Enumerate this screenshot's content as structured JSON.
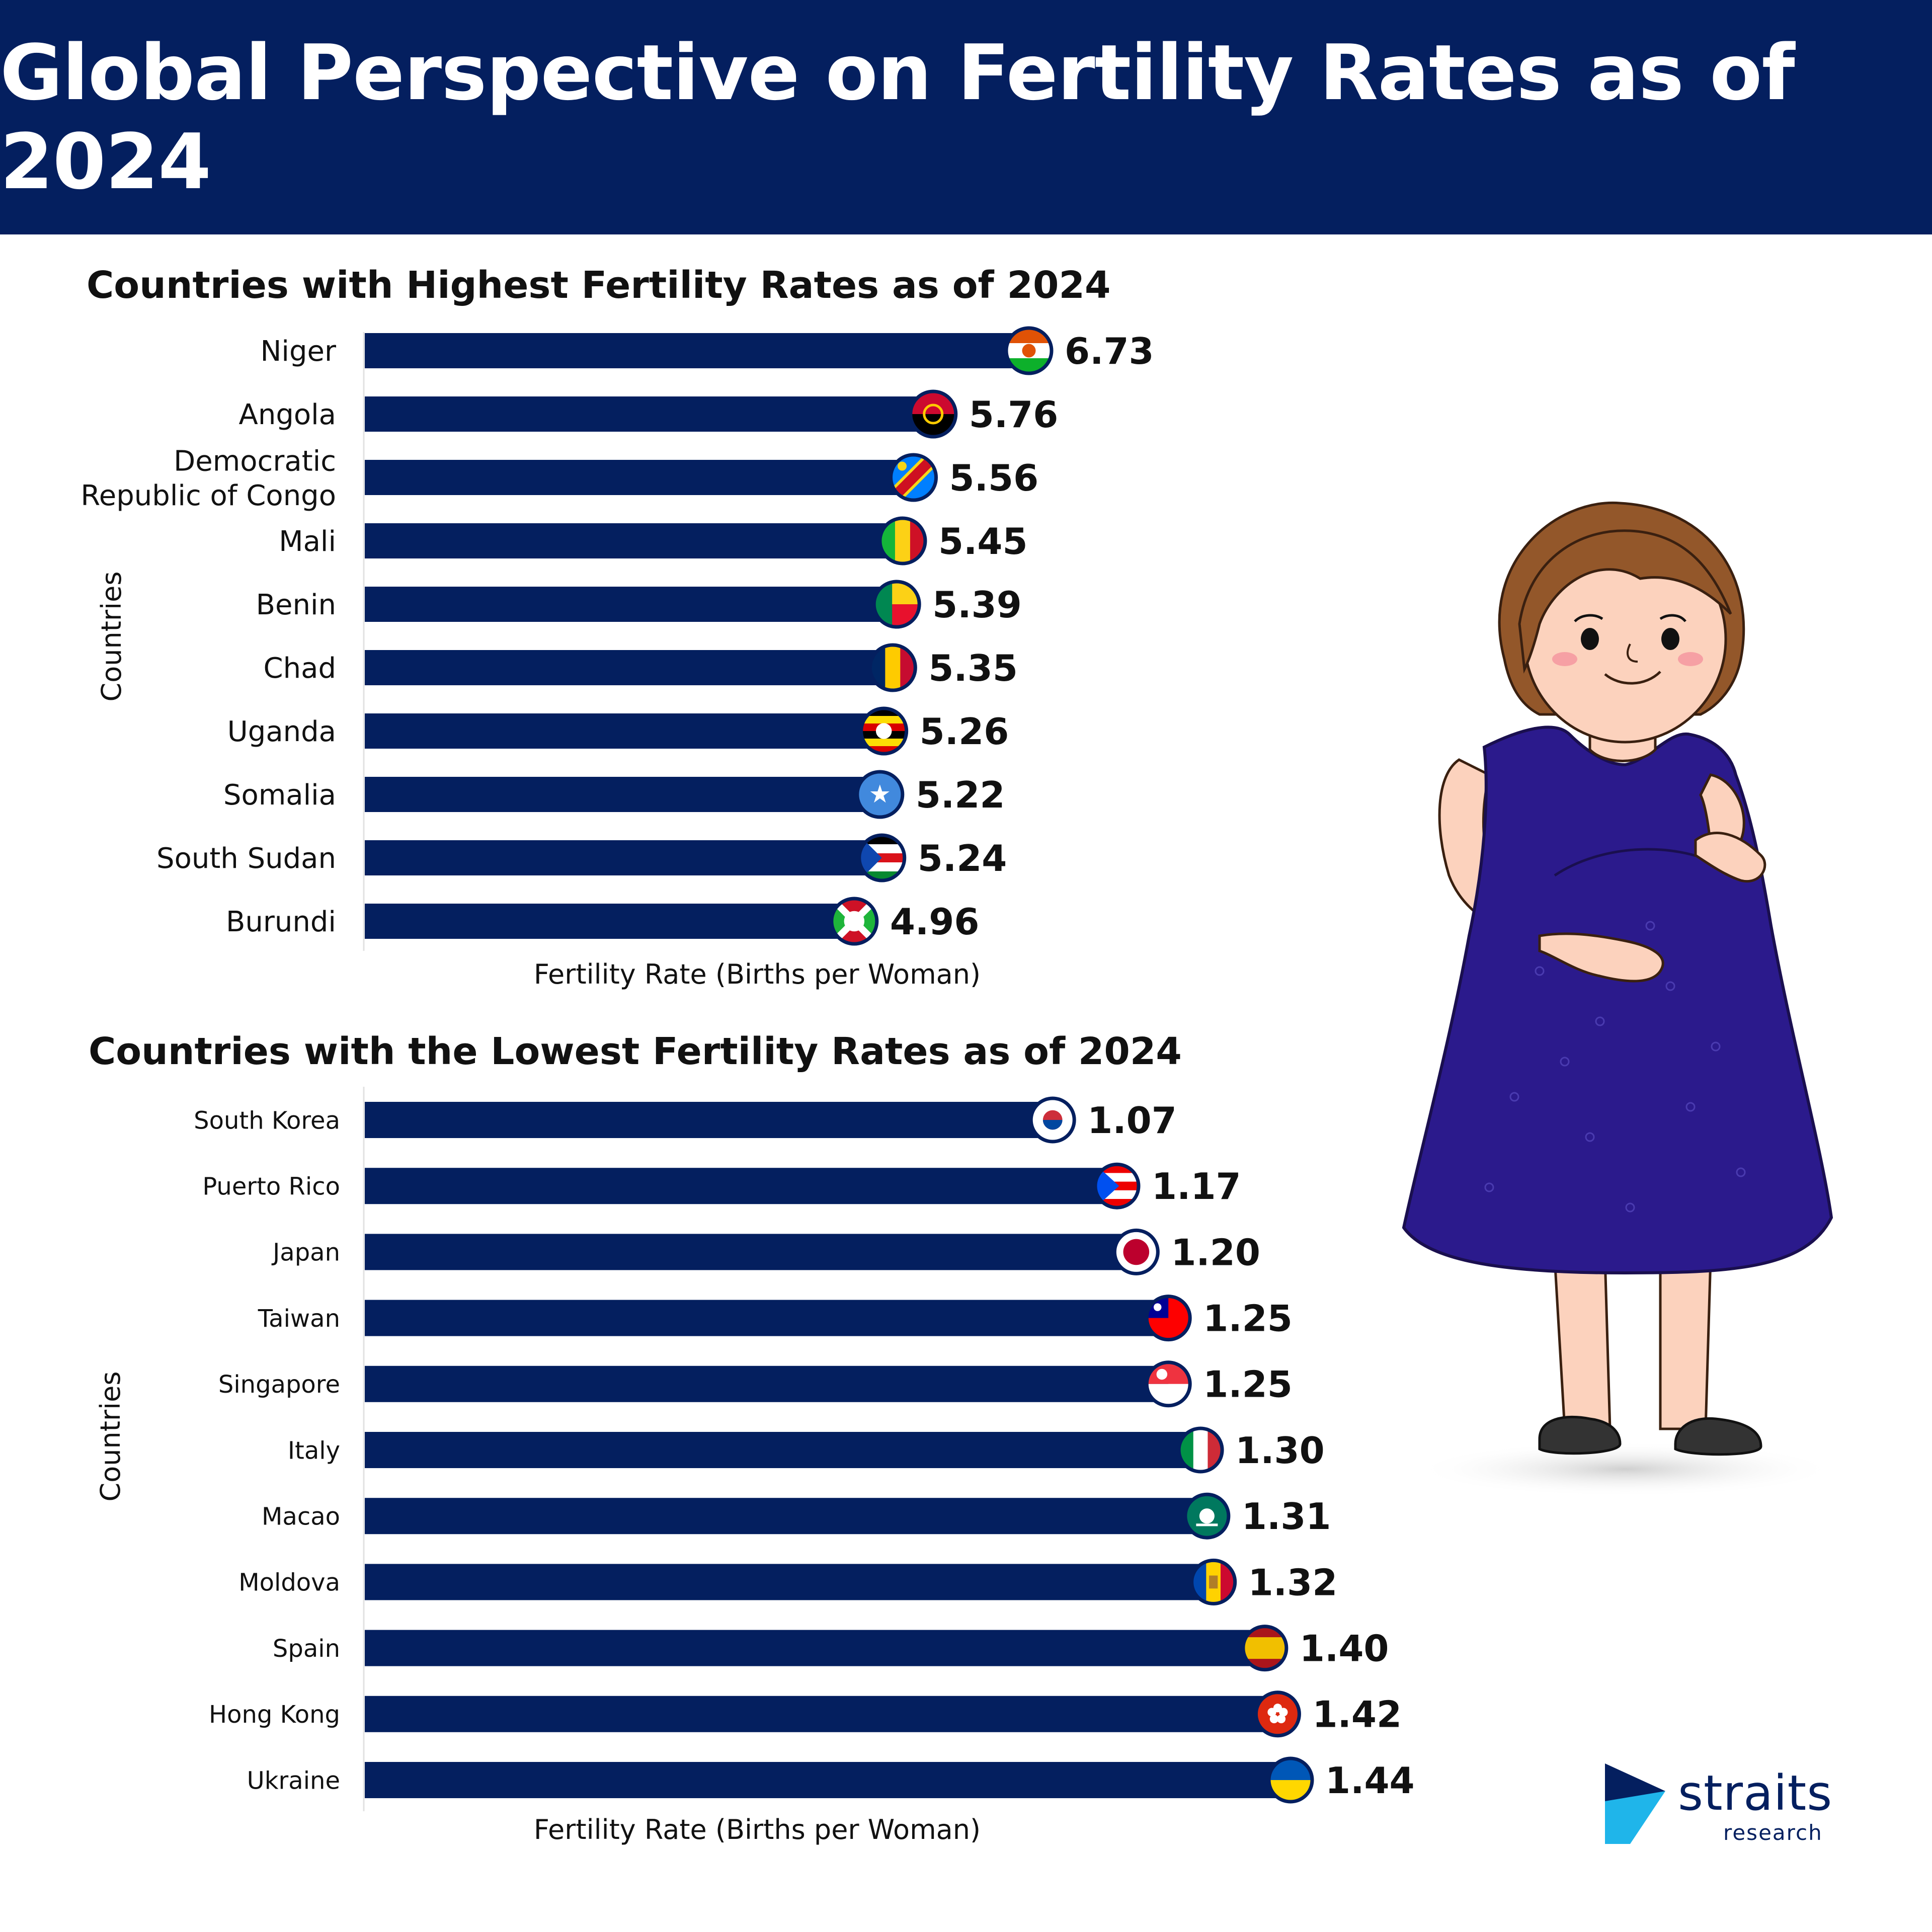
{
  "header": {
    "title": "Global Perspective on Fertility Rates as of 2024"
  },
  "colors": {
    "header_bg": "#041f5f",
    "bar": "#041f5f",
    "dress": "#2b1a8c",
    "brand_cyan": "#1fb5ea"
  },
  "chart_data": [
    {
      "type": "bar",
      "orientation": "horizontal",
      "title": "Countries with Highest Fertility Rates as of 2024",
      "xlabel": "Fertility Rate (Births per Woman)",
      "ylabel": "Countries",
      "categories": [
        "Niger",
        "Angola",
        "Democratic Republic of Congo",
        "Mali",
        "Benin",
        "Chad",
        "Uganda",
        "Somalia",
        "South Sudan",
        "Burundi"
      ],
      "category_lines": [
        [
          "Niger"
        ],
        [
          "Angola"
        ],
        [
          "Democratic",
          "Republic of Congo"
        ],
        [
          "Mali"
        ],
        [
          "Benin"
        ],
        [
          "Chad"
        ],
        [
          "Uganda"
        ],
        [
          "Somalia"
        ],
        [
          "South Sudan"
        ],
        [
          "Burundi"
        ]
      ],
      "values": [
        6.73,
        5.76,
        5.56,
        5.45,
        5.39,
        5.35,
        5.26,
        5.22,
        5.24,
        4.96
      ],
      "value_labels": [
        "6.73",
        "5.76",
        "5.56",
        "5.45",
        "5.39",
        "5.35",
        "5.26",
        "5.22",
        "5.24",
        "4.96"
      ],
      "flag_icons": [
        "niger-flag-icon",
        "angola-flag-icon",
        "drc-flag-icon",
        "mali-flag-icon",
        "benin-flag-icon",
        "chad-flag-icon",
        "uganda-flag-icon",
        "somalia-flag-icon",
        "south-sudan-flag-icon",
        "burundi-flag-icon"
      ],
      "xlim": [
        0,
        6.73
      ],
      "grid": false,
      "legend": "none"
    },
    {
      "type": "bar",
      "orientation": "horizontal",
      "title": "Countries with the Lowest Fertility Rates as of 2024",
      "xlabel": "Fertility Rate (Births per Woman)",
      "ylabel": "Countries",
      "categories": [
        "South Korea",
        "Puerto Rico",
        "Japan",
        "Taiwan",
        "Singapore",
        "Italy",
        "Macao",
        "Moldova",
        "Spain",
        "Hong Kong",
        "Ukraine"
      ],
      "category_lines": [
        [
          "South Korea"
        ],
        [
          "Puerto Rico"
        ],
        [
          "Japan"
        ],
        [
          "Taiwan"
        ],
        [
          "Singapore"
        ],
        [
          "Italy"
        ],
        [
          "Macao"
        ],
        [
          "Moldova"
        ],
        [
          "Spain"
        ],
        [
          "Hong Kong"
        ],
        [
          "Ukraine"
        ]
      ],
      "values": [
        1.07,
        1.17,
        1.2,
        1.25,
        1.25,
        1.3,
        1.31,
        1.32,
        1.4,
        1.42,
        1.44
      ],
      "value_labels": [
        "1.07",
        "1.17",
        "1.20",
        "1.25",
        "1.25",
        "1.30",
        "1.31",
        "1.32",
        "1.40",
        "1.42",
        "1.44"
      ],
      "flag_icons": [
        "south-korea-flag-icon",
        "puerto-rico-flag-icon",
        "japan-flag-icon",
        "taiwan-flag-icon",
        "singapore-flag-icon",
        "italy-flag-icon",
        "macao-flag-icon",
        "moldova-flag-icon",
        "spain-flag-icon",
        "hong-kong-flag-icon",
        "ukraine-flag-icon"
      ],
      "xlim": [
        0,
        1.44
      ],
      "grid": false,
      "legend": "none"
    }
  ],
  "brand": {
    "name": "straits",
    "sub": "research"
  }
}
